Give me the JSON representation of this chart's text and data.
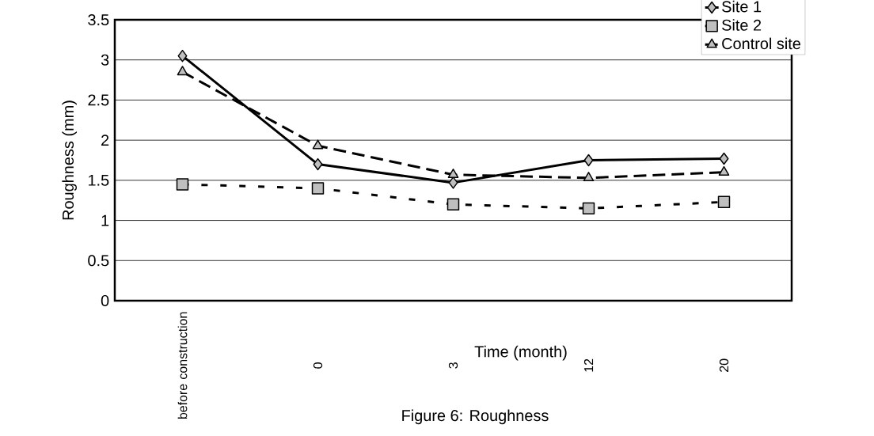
{
  "chart_data": {
    "type": "line",
    "title": "Figure 6: Roughness",
    "xlabel": "Time (month)",
    "ylabel": "Roughness (mm)",
    "categories": [
      "before construction",
      "0",
      "3",
      "12",
      "20"
    ],
    "series": [
      {
        "name": "Site 1",
        "color": "#000000",
        "marker": "diamond",
        "line_style": "solid",
        "values": [
          3.05,
          1.7,
          1.47,
          1.75,
          1.77
        ]
      },
      {
        "name": "Site 2",
        "color": "#000000",
        "marker": "square",
        "line_style": "dotted",
        "values": [
          1.45,
          1.4,
          1.2,
          1.15,
          1.23
        ]
      },
      {
        "name": "Control site",
        "color": "#000000",
        "marker": "triangle",
        "line_style": "dashed",
        "values": [
          2.85,
          1.93,
          1.57,
          1.53,
          1.6
        ]
      }
    ],
    "ylim": [
      0,
      3.5
    ],
    "yticks": [
      0,
      0.5,
      1,
      1.5,
      2,
      2.5,
      3,
      3.5
    ],
    "grid": "y",
    "legend": "top right"
  }
}
